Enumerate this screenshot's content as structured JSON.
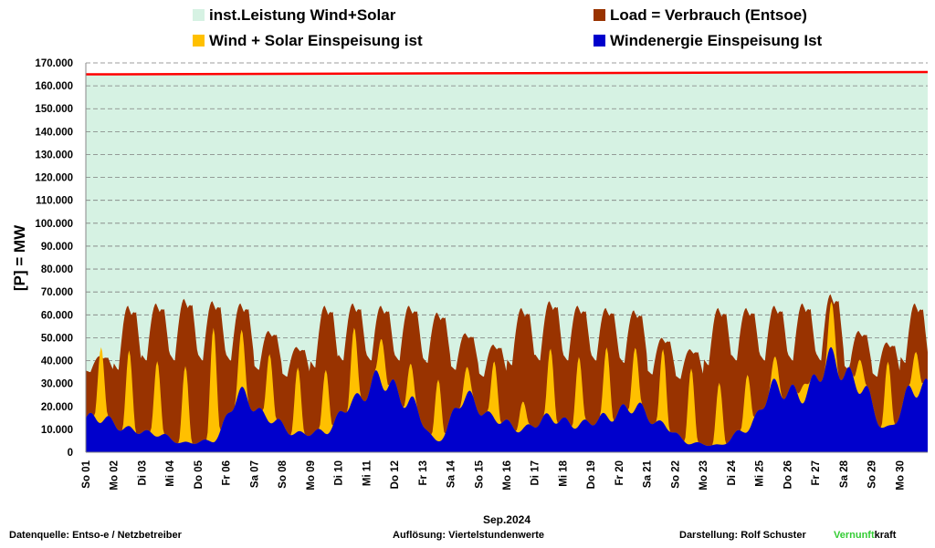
{
  "chart_data": {
    "type": "area",
    "ylabel": "[P] = MW",
    "xlabel": "Sep.2024",
    "ylim": [
      0,
      170000
    ],
    "ytick_step": 10000,
    "grid": true,
    "legend_placement": "top",
    "legend": [
      {
        "key": "installed",
        "label": "inst.Leistung Wind+Solar",
        "color": "#D6F2E3"
      },
      {
        "key": "load",
        "label": "Load =  Verbrauch (Entsoe)",
        "color": "#993300"
      },
      {
        "key": "windsolar",
        "label": "Wind + Solar Einspeisung ist",
        "color": "#FFC000"
      },
      {
        "key": "wind",
        "label": "Windenergie Einspeisung Ist",
        "color": "#0000CC"
      }
    ],
    "installed_line_color": "#FF0000",
    "installed_capacity_mw": {
      "start": 165000,
      "end": 166000
    },
    "days": [
      "So 01",
      "Mo 02",
      "Di 03",
      "Mi 04",
      "Do 05",
      "Fr 06",
      "Sa 07",
      "So 08",
      "Mo 09",
      "Di 10",
      "Mi 11",
      "Do 12",
      "Fr 13",
      "Sa 14",
      "So 15",
      "Mo 16",
      "Di 17",
      "Mi 18",
      "Do 19",
      "Fr 20",
      "Sa 21",
      "So 22",
      "Mo 23",
      "Di 24",
      "Mi 25",
      "Do 26",
      "Fr 27",
      "Sa 28",
      "So 29",
      "Mo 30"
    ],
    "daily_load_peak_mw": [
      42000,
      64000,
      65000,
      67000,
      66000,
      65000,
      53000,
      46000,
      64000,
      65000,
      64000,
      64000,
      61000,
      52000,
      47000,
      63000,
      66000,
      64000,
      63000,
      62000,
      50000,
      45000,
      63000,
      63000,
      64000,
      65000,
      69000,
      53000,
      48000,
      65000
    ],
    "daily_load_min_mw": [
      35000,
      36000,
      40000,
      40000,
      40000,
      40000,
      36000,
      33000,
      37000,
      40000,
      40000,
      40000,
      39000,
      36000,
      33000,
      38000,
      40000,
      40000,
      40000,
      39000,
      34000,
      32000,
      38000,
      40000,
      40000,
      40000,
      40000,
      36000,
      33000,
      39000
    ],
    "daily_wind_avg_mw": [
      15000,
      10000,
      8000,
      4000,
      5000,
      25000,
      15000,
      8000,
      9000,
      22000,
      32000,
      22000,
      5000,
      24000,
      15000,
      10000,
      15000,
      12000,
      15000,
      20000,
      12000,
      4000,
      3000,
      10000,
      28000,
      25000,
      40000,
      30000,
      10000,
      28000
    ],
    "daily_solar_peak_mw": [
      33000,
      33000,
      33000,
      33000,
      50000,
      25000,
      30000,
      28000,
      28000,
      30000,
      20000,
      15000,
      27000,
      12000,
      25000,
      12000,
      30000,
      30000,
      30000,
      27000,
      32000,
      33000,
      27000,
      25000,
      10000,
      8000,
      20000,
      15000,
      28000,
      20000
    ]
  },
  "footer": {
    "source": "Datenquelle:  Entso-e  / Netzbetreiber",
    "resolution": "Auflösung: Viertelstundenwerte",
    "author": "Darstellung:  Rolf Schuster",
    "brand_green": "Vernunft",
    "brand_black": "kraft",
    "brand_color": "#33CC33"
  }
}
